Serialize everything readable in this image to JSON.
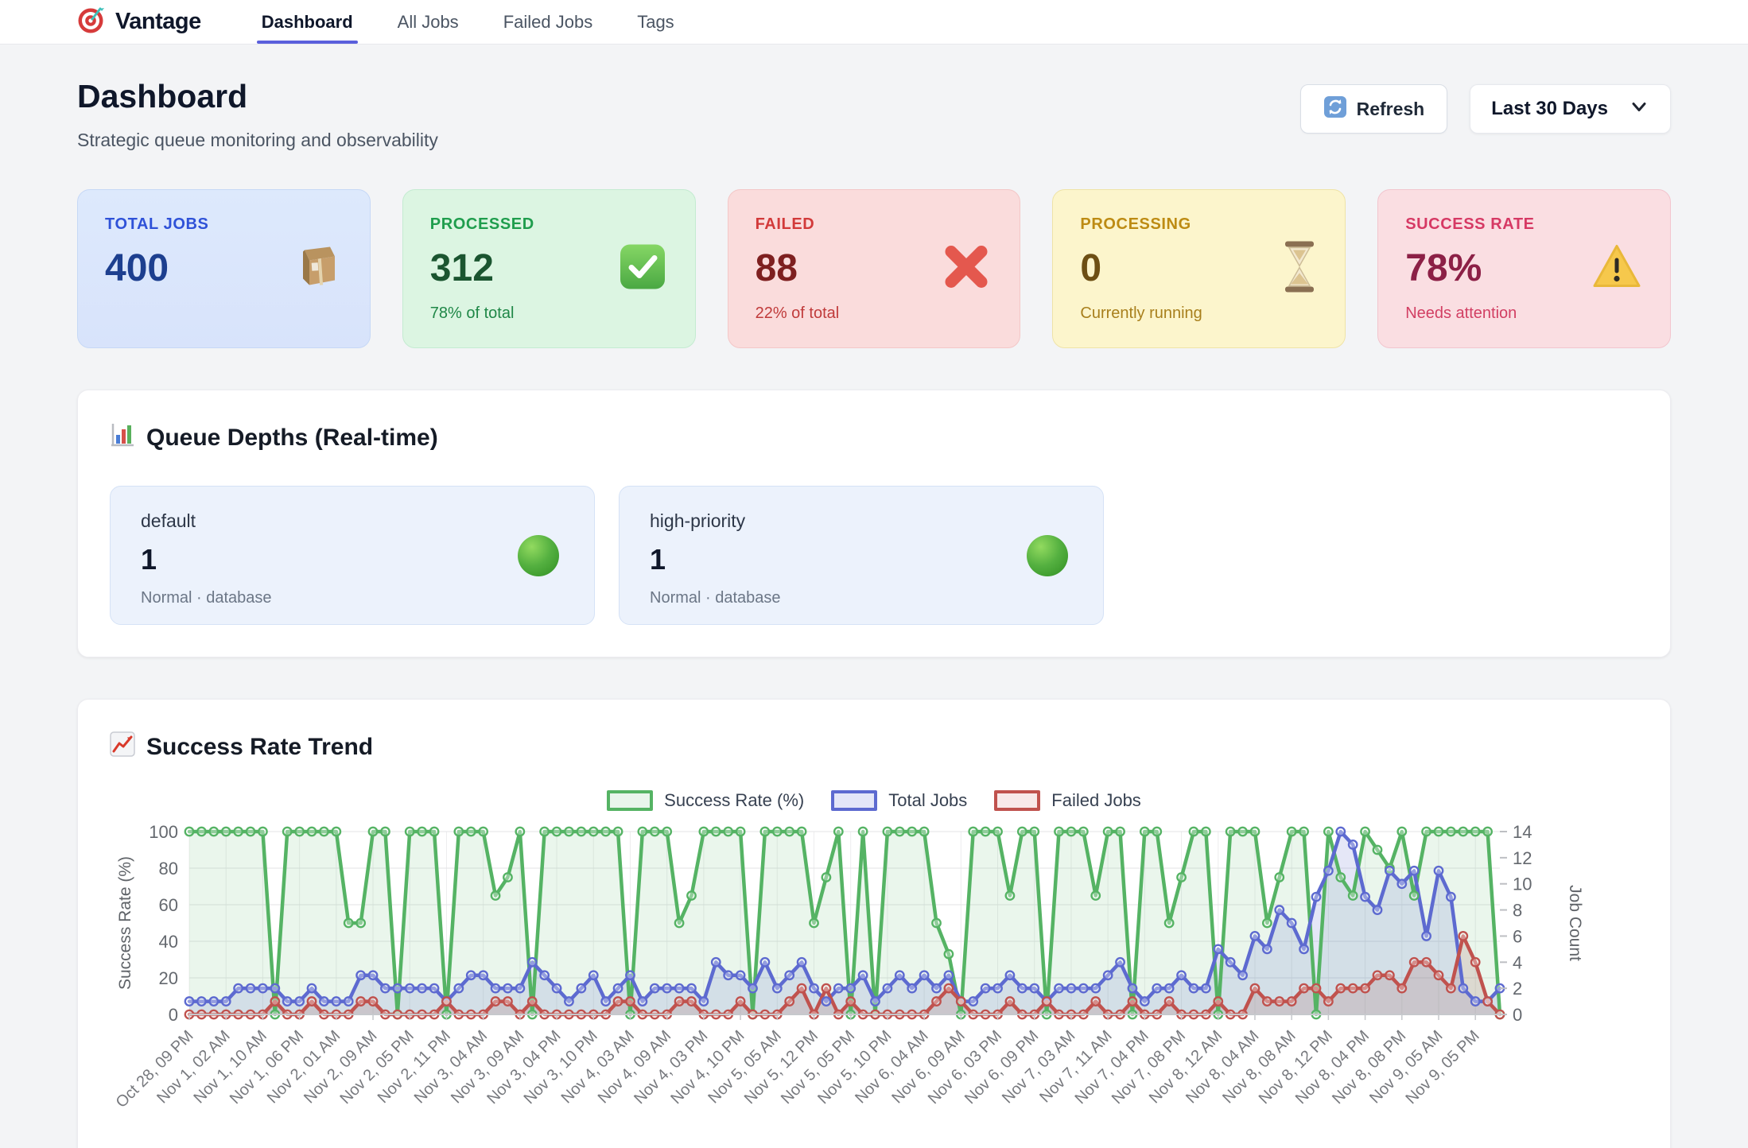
{
  "nav": {
    "brand": "Vantage",
    "tabs": [
      {
        "label": "Dashboard",
        "active": true
      },
      {
        "label": "All Jobs",
        "active": false
      },
      {
        "label": "Failed Jobs",
        "active": false
      },
      {
        "label": "Tags",
        "active": false
      }
    ]
  },
  "header": {
    "title": "Dashboard",
    "subtitle": "Strategic queue monitoring and observability",
    "refresh_label": "Refresh",
    "refresh_icon": "refresh-icon",
    "range_value": "Last 30 Days",
    "range_chevron_icon": "chevron-down-icon"
  },
  "accent_color": "#5a5fdc",
  "stats": [
    {
      "label": "TOTAL JOBS",
      "value": "400",
      "subtitle": "",
      "icon": "package-icon",
      "theme": "blue"
    },
    {
      "label": "PROCESSED",
      "value": "312",
      "subtitle": "78% of total",
      "icon": "check-icon",
      "theme": "green"
    },
    {
      "label": "FAILED",
      "value": "88",
      "subtitle": "22% of total",
      "icon": "cross-icon",
      "theme": "red"
    },
    {
      "label": "PROCESSING",
      "value": "0",
      "subtitle": "Currently running",
      "icon": "hourglass-icon",
      "theme": "yellow"
    },
    {
      "label": "SUCCESS RATE",
      "value": "78%",
      "subtitle": "Needs attention",
      "icon": "warning-icon",
      "theme": "pink"
    }
  ],
  "queues": {
    "title": "Queue Depths (Real-time)",
    "title_icon": "bar-chart-icon",
    "items": [
      {
        "name": "default",
        "depth": "1",
        "meta": "Normal · database",
        "status_color": "#3f9e2d"
      },
      {
        "name": "high-priority",
        "depth": "1",
        "meta": "Normal · database",
        "status_color": "#3f9e2d"
      }
    ]
  },
  "trend": {
    "title": "Success Rate Trend",
    "title_icon": "line-chart-icon"
  },
  "chart_data": {
    "type": "line",
    "title": "Success Rate Trend",
    "legend_position": "top-center",
    "grid": true,
    "points_per_label": 3,
    "x_labels": [
      "Oct 28, 09 PM",
      "Nov 1, 02 AM",
      "Nov 1, 10 AM",
      "Nov 1, 06 PM",
      "Nov 2, 01 AM",
      "Nov 2, 09 AM",
      "Nov 2, 05 PM",
      "Nov 2, 11 PM",
      "Nov 3, 04 AM",
      "Nov 3, 09 AM",
      "Nov 3, 04 PM",
      "Nov 3, 10 PM",
      "Nov 4, 03 AM",
      "Nov 4, 09 AM",
      "Nov 4, 03 PM",
      "Nov 4, 10 PM",
      "Nov 5, 05 AM",
      "Nov 5, 12 PM",
      "Nov 5, 05 PM",
      "Nov 5, 10 PM",
      "Nov 6, 04 AM",
      "Nov 6, 09 AM",
      "Nov 6, 03 PM",
      "Nov 6, 09 PM",
      "Nov 7, 03 AM",
      "Nov 7, 11 AM",
      "Nov 7, 04 PM",
      "Nov 7, 08 PM",
      "Nov 8, 12 AM",
      "Nov 8, 04 AM",
      "Nov 8, 08 AM",
      "Nov 8, 12 PM",
      "Nov 8, 04 PM",
      "Nov 8, 08 PM",
      "Nov 9, 05 AM",
      "Nov 9, 05 PM"
    ],
    "y_left": {
      "label": "Success Rate (%)",
      "min": 0,
      "max": 100,
      "ticks": [
        0,
        20,
        40,
        60,
        80,
        100
      ]
    },
    "y_right": {
      "label": "Job Count",
      "min": 0,
      "max": 14,
      "ticks": [
        0,
        2,
        4,
        6,
        8,
        10,
        12,
        14
      ]
    },
    "series": [
      {
        "name": "Success Rate (%)",
        "axis": "left",
        "color": "#55b364",
        "fill": "rgba(85,179,100,0.12)",
        "legend_fill": "#e9f5ec",
        "values": [
          100,
          100,
          100,
          100,
          100,
          100,
          100,
          0,
          100,
          100,
          100,
          100,
          100,
          50,
          50,
          100,
          100,
          0,
          100,
          100,
          100,
          0,
          100,
          100,
          100,
          65,
          75,
          100,
          0,
          100,
          100,
          100,
          100,
          100,
          100,
          100,
          0,
          100,
          100,
          100,
          50,
          65,
          100,
          100,
          100,
          100,
          0,
          100,
          100,
          100,
          100,
          50,
          75,
          100,
          0,
          100,
          0,
          100,
          100,
          100,
          100,
          50,
          33,
          0,
          100,
          100,
          100,
          65,
          100,
          100,
          0,
          100,
          100,
          100,
          65,
          100,
          100,
          0,
          100,
          100,
          50,
          75,
          100,
          100,
          0,
          100,
          100,
          100,
          50,
          75,
          100,
          100,
          0,
          100,
          75,
          65,
          100,
          90,
          80,
          100,
          65,
          100,
          100,
          100,
          100,
          100,
          100,
          0
        ]
      },
      {
        "name": "Total Jobs",
        "axis": "right",
        "color": "#5d6ad0",
        "fill": "rgba(93,106,208,0.16)",
        "legend_fill": "#e4e6f8",
        "values": [
          1,
          1,
          1,
          1,
          2,
          2,
          2,
          2,
          1,
          1,
          2,
          1,
          1,
          1,
          3,
          3,
          2,
          2,
          2,
          2,
          2,
          1,
          2,
          3,
          3,
          2,
          2,
          2,
          4,
          3,
          2,
          1,
          2,
          3,
          1,
          2,
          3,
          1,
          2,
          2,
          2,
          2,
          1,
          4,
          3,
          3,
          2,
          4,
          2,
          3,
          4,
          2,
          1,
          2,
          2,
          3,
          1,
          2,
          3,
          2,
          3,
          2,
          3,
          1,
          1,
          2,
          2,
          3,
          2,
          2,
          1,
          2,
          2,
          2,
          2,
          3,
          4,
          2,
          1,
          2,
          2,
          3,
          2,
          2,
          5,
          4,
          3,
          6,
          5,
          8,
          7,
          5,
          9,
          11,
          14,
          13,
          9,
          8,
          11,
          10,
          11,
          6,
          11,
          9,
          2,
          1,
          1,
          2
        ]
      },
      {
        "name": "Failed Jobs",
        "axis": "right",
        "color": "#c0524e",
        "fill": "rgba(160,90,85,0.18)",
        "legend_fill": "#f8e9e9",
        "values": [
          0,
          0,
          0,
          0,
          0,
          0,
          0,
          1,
          0,
          0,
          1,
          0,
          0,
          0,
          1,
          1,
          0,
          0,
          0,
          0,
          0,
          1,
          0,
          0,
          0,
          1,
          1,
          0,
          1,
          0,
          0,
          0,
          0,
          0,
          0,
          1,
          1,
          0,
          0,
          0,
          1,
          1,
          0,
          0,
          0,
          1,
          0,
          0,
          0,
          1,
          2,
          0,
          2,
          0,
          1,
          0,
          0,
          0,
          0,
          0,
          0,
          1,
          2,
          1,
          0,
          0,
          0,
          1,
          0,
          0,
          1,
          0,
          0,
          0,
          1,
          0,
          0,
          1,
          0,
          0,
          1,
          0,
          0,
          0,
          1,
          0,
          0,
          2,
          1,
          1,
          1,
          2,
          2,
          1,
          2,
          2,
          2,
          3,
          3,
          2,
          4,
          4,
          3,
          2,
          6,
          4,
          1,
          0
        ]
      }
    ]
  }
}
